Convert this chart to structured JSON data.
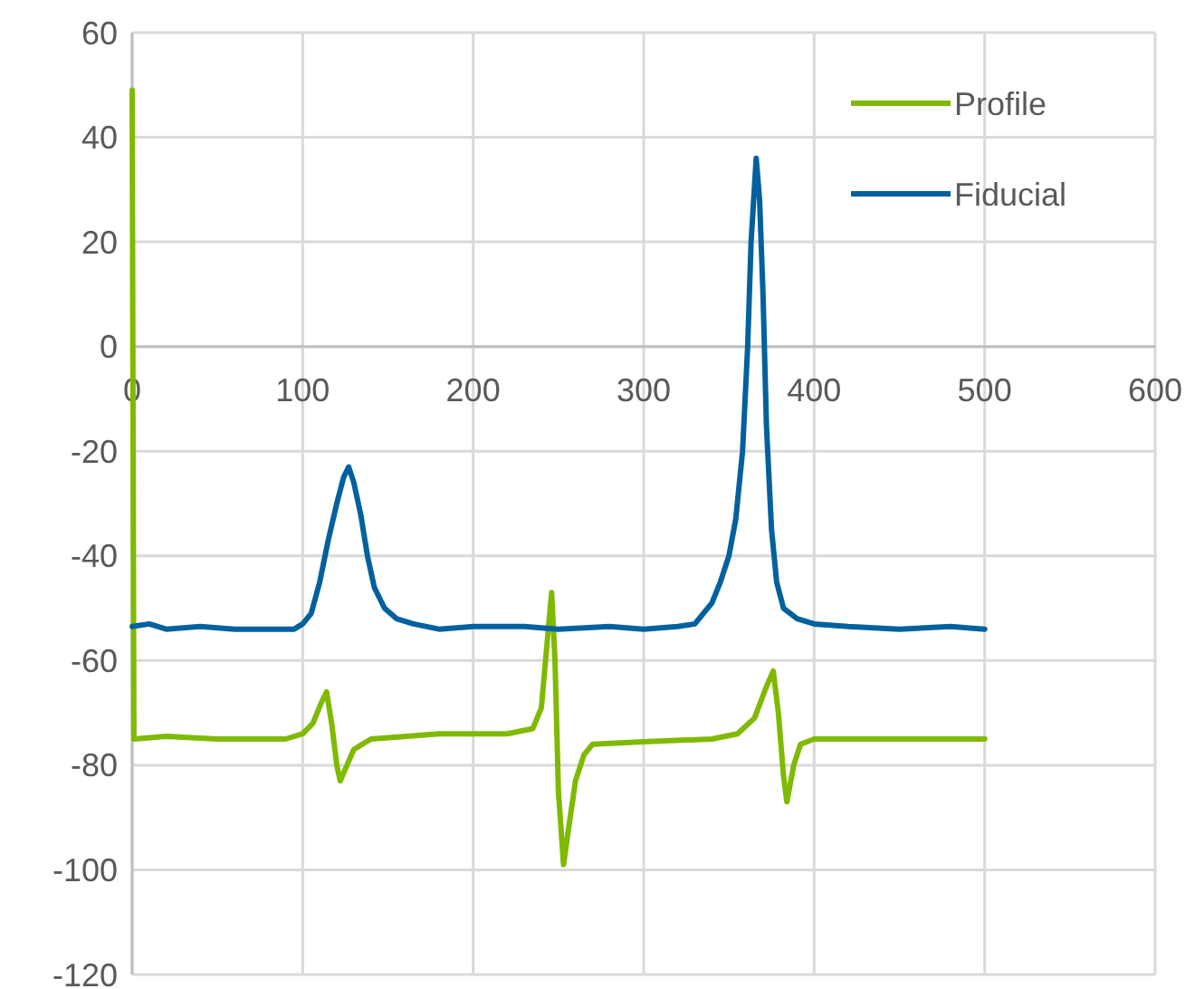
{
  "chart_data": {
    "type": "line",
    "xlim": [
      0,
      600
    ],
    "xticks": [
      0,
      100,
      200,
      300,
      400,
      500,
      600
    ],
    "ylim": [
      -120,
      60
    ],
    "yticks": [
      -120,
      -100,
      -80,
      -60,
      -40,
      -20,
      0,
      20,
      40,
      60
    ],
    "grid": true,
    "legend": "top right",
    "marker": "none",
    "line_style": "solid",
    "series": [
      {
        "name": "Profile",
        "color": "#7fba00",
        "x": [
          0,
          1,
          20,
          50,
          90,
          100,
          106,
          111,
          114,
          117,
          120,
          122,
          126,
          130,
          140,
          180,
          220,
          235,
          240,
          243,
          246,
          248,
          250,
          253,
          256,
          260,
          265,
          270,
          300,
          340,
          355,
          365,
          372,
          376,
          379,
          382,
          384,
          388,
          392,
          400,
          450,
          500
        ],
        "values": [
          49,
          -75,
          -74.5,
          -75,
          -75,
          -74,
          -72,
          -68,
          -66,
          -72,
          -80,
          -83,
          -80,
          -77,
          -75,
          -74,
          -74,
          -73,
          -69,
          -58,
          -47,
          -60,
          -85,
          -99,
          -92,
          -83,
          -78,
          -76,
          -75.5,
          -75,
          -74,
          -71,
          -65,
          -62,
          -70,
          -82,
          -87,
          -80,
          -76,
          -75,
          -75,
          -75
        ]
      },
      {
        "name": "Fiducial",
        "color": "#00619e",
        "x": [
          0,
          10,
          20,
          40,
          60,
          80,
          95,
          100,
          105,
          110,
          115,
          120,
          124,
          127,
          130,
          134,
          138,
          142,
          148,
          155,
          165,
          180,
          200,
          230,
          250,
          280,
          300,
          320,
          330,
          335,
          340,
          345,
          350,
          354,
          358,
          361,
          363,
          366,
          368,
          370,
          372,
          375,
          378,
          382,
          390,
          400,
          420,
          450,
          480,
          500
        ],
        "values": [
          -53.5,
          -53,
          -54,
          -53.5,
          -54,
          -54,
          -54,
          -53,
          -51,
          -45,
          -37,
          -30,
          -25,
          -23,
          -26,
          -32,
          -40,
          -46,
          -50,
          -52,
          -53,
          -54,
          -53.5,
          -53.5,
          -54,
          -53.5,
          -54,
          -53.5,
          -53,
          -51,
          -49,
          -45,
          -40,
          -33,
          -20,
          0,
          20,
          36,
          28,
          10,
          -15,
          -35,
          -45,
          -50,
          -52,
          -53,
          -53.5,
          -54,
          -53.5,
          -54
        ]
      }
    ]
  }
}
